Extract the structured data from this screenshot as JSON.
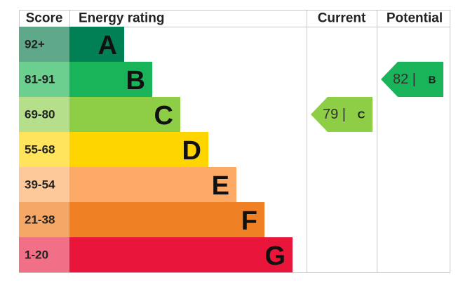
{
  "header": {
    "score": "Score",
    "rating": "Energy rating",
    "current": "Current",
    "potential": "Potential"
  },
  "bands": [
    {
      "score": "92+",
      "letter": "A"
    },
    {
      "score": "81-91",
      "letter": "B"
    },
    {
      "score": "69-80",
      "letter": "C"
    },
    {
      "score": "55-68",
      "letter": "D"
    },
    {
      "score": "39-54",
      "letter": "E"
    },
    {
      "score": "21-38",
      "letter": "F"
    },
    {
      "score": "1-20",
      "letter": "G"
    }
  ],
  "current": {
    "rating": "79 |",
    "band": "C"
  },
  "potential": {
    "rating": "82 |",
    "band": "B"
  }
}
